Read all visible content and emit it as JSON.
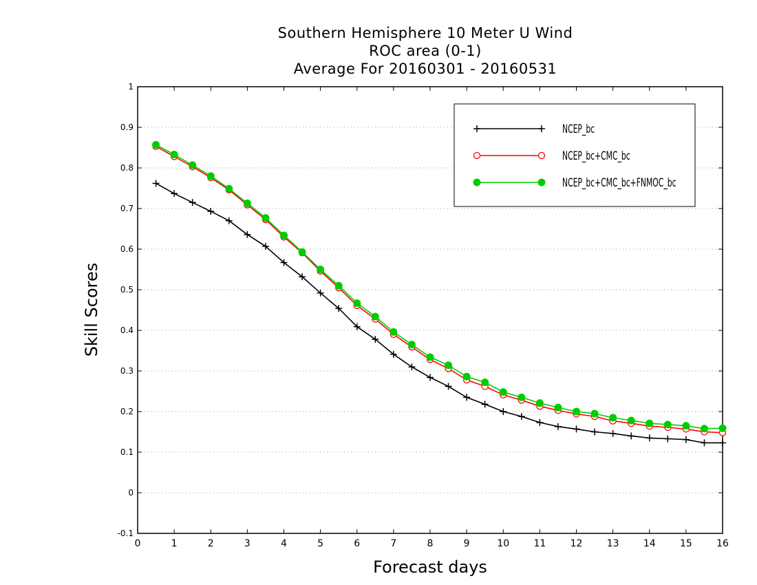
{
  "chart_data": {
    "type": "line",
    "title": [
      "Southern Hemisphere 10 Meter U Wind",
      "ROC area (0-1)",
      "Average For 20160301 - 20160531"
    ],
    "xlabel": "Forecast days",
    "ylabel": "Skill Scores",
    "xlim": [
      0,
      16
    ],
    "ylim": [
      -0.1,
      1
    ],
    "xticks": [
      "0",
      "1",
      "2",
      "3",
      "4",
      "5",
      "6",
      "7",
      "8",
      "9",
      "10",
      "11",
      "12",
      "13",
      "14",
      "15",
      "16"
    ],
    "yticks": [
      "-0.1",
      "0",
      "0.1",
      "0.2",
      "0.3",
      "0.4",
      "0.5",
      "0.6",
      "0.7",
      "0.8",
      "0.9",
      "1"
    ],
    "grid": true,
    "legend_position": "top-right",
    "x": [
      0.5,
      1,
      1.5,
      2,
      2.5,
      3,
      3.5,
      4,
      4.5,
      5,
      5.5,
      6,
      6.5,
      7,
      7.5,
      8,
      8.5,
      9,
      9.5,
      10,
      10.5,
      11,
      11.5,
      12,
      12.5,
      13,
      13.5,
      14,
      14.5,
      15,
      15.5,
      16
    ],
    "series": [
      {
        "name": "NCEP_bc",
        "color": "#000000",
        "marker": "plus",
        "values": [
          0.762,
          0.737,
          0.715,
          0.693,
          0.67,
          0.636,
          0.607,
          0.567,
          0.532,
          0.492,
          0.454,
          0.409,
          0.378,
          0.341,
          0.31,
          0.284,
          0.262,
          0.235,
          0.218,
          0.2,
          0.188,
          0.173,
          0.163,
          0.157,
          0.15,
          0.146,
          0.14,
          0.135,
          0.133,
          0.131,
          0.123,
          0.123
        ]
      },
      {
        "name": "NCEP_bc+CMC_bc",
        "color": "#ff0000",
        "marker": "open-circle",
        "values": [
          0.853,
          0.828,
          0.803,
          0.776,
          0.746,
          0.709,
          0.673,
          0.63,
          0.591,
          0.546,
          0.505,
          0.461,
          0.428,
          0.39,
          0.359,
          0.328,
          0.306,
          0.278,
          0.262,
          0.241,
          0.228,
          0.213,
          0.203,
          0.194,
          0.188,
          0.177,
          0.171,
          0.164,
          0.161,
          0.157,
          0.15,
          0.148
        ]
      },
      {
        "name": "NCEP_bc+CMC_bc+FNMOC_bc",
        "color": "#00cc00",
        "marker": "filled-circle",
        "values": [
          0.857,
          0.833,
          0.807,
          0.78,
          0.749,
          0.713,
          0.677,
          0.634,
          0.593,
          0.55,
          0.51,
          0.467,
          0.434,
          0.396,
          0.365,
          0.334,
          0.314,
          0.286,
          0.272,
          0.248,
          0.235,
          0.221,
          0.21,
          0.2,
          0.195,
          0.185,
          0.178,
          0.171,
          0.168,
          0.165,
          0.158,
          0.159
        ]
      }
    ]
  }
}
